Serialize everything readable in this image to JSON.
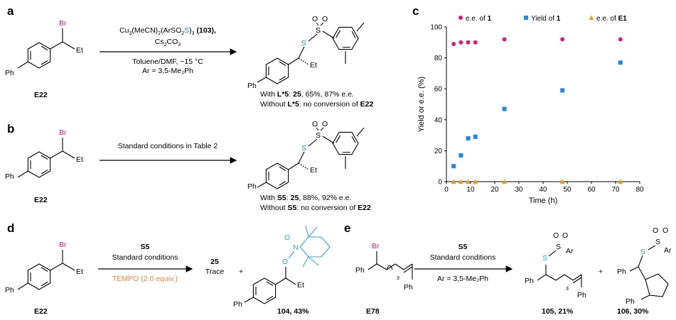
{
  "panels": {
    "a": {
      "letter": "a",
      "compound_label": "E22",
      "br": "Br",
      "et": "Et",
      "ph": "Ph",
      "conditions_line1_pre": "Cu",
      "conditions_line1_sub1": "3",
      "conditions_line1_mid": "(MeCN)",
      "conditions_line1_sub2": "2",
      "conditions_line1_mid2": "(ArSO",
      "conditions_line1_sub3": "2",
      "conditions_line1_s": "S",
      "conditions_line1_mid3": ")",
      "conditions_line1_sub4": "3",
      "conditions_line1_cat": " (103),",
      "conditions_line2": "Cs",
      "conditions_line2_sub": "2",
      "conditions_line2_rest": "CO",
      "conditions_line2_sub2": "3",
      "conditions_line3": "Toluene/DMF, −15 °C",
      "conditions_line4": "Ar = 3,5-Me₂Ph",
      "result_line1": "With L*5: 25, 65%, 87% e.e.",
      "result_line2": "Without L*5: no conversion of E22"
    },
    "b": {
      "letter": "b",
      "compound_label": "E22",
      "br": "Br",
      "et": "Et",
      "ph": "Ph",
      "conditions": "Standard conditions in Table 2",
      "result_line1": "With S5: 25, 88%, 92% e.e.",
      "result_line2": "Without S5: no conversion of E22"
    },
    "c": {
      "letter": "c"
    },
    "d": {
      "letter": "d",
      "compound_label": "E22",
      "br": "Br",
      "et": "Et",
      "ph": "Ph",
      "cond_line1": "S5",
      "cond_line2": "Standard conditions",
      "cond_line3": "TEMPO (2.0 equiv.)",
      "product1_num": "25",
      "product1_text": "Trace",
      "plus": "+",
      "product2_label": "104, 43%"
    },
    "e": {
      "letter": "e",
      "compound_label": "E78",
      "br": "Br",
      "ph": "Ph",
      "sub3": "3",
      "cond_line1": "S5",
      "cond_line2": "Standard conditions",
      "cond_line3": "Ar = 3,5-Me₂Ph",
      "plus": "+",
      "product1_label": "105, 21%",
      "product2_label": "106, 30%",
      "ar": "Ar"
    }
  },
  "colors": {
    "magenta": "#e0197d",
    "blue": "#1e88e5",
    "orange": "#f39c12",
    "tempo": "#f5833b",
    "cyan": "#2aa8e0"
  },
  "chart_data": {
    "type": "scatter",
    "xlabel": "Time (h)",
    "ylabel": "Yield or e.e. (%)",
    "xlim": [
      0,
      80
    ],
    "ylim": [
      0,
      100
    ],
    "xticks": [
      0,
      10,
      20,
      30,
      40,
      50,
      60,
      70,
      80
    ],
    "yticks": [
      0,
      20,
      40,
      60,
      80,
      100
    ],
    "legend_position": "top",
    "series": [
      {
        "name": "e.e. of 1",
        "marker": "circle",
        "color": "#e0197d",
        "x": [
          3,
          6,
          9,
          12,
          24,
          48,
          72
        ],
        "y": [
          89,
          90,
          90,
          90,
          92,
          92,
          92
        ]
      },
      {
        "name": "Yield of 1",
        "marker": "square",
        "color": "#1e88e5",
        "x": [
          3,
          6,
          9,
          12,
          24,
          48,
          72
        ],
        "y": [
          10,
          17,
          28,
          29,
          47,
          59,
          77
        ]
      },
      {
        "name": "e.e. of E1",
        "marker": "triangle",
        "color": "#f39c12",
        "x": [
          3,
          6,
          9,
          12,
          24,
          48,
          72
        ],
        "y": [
          0,
          0,
          0,
          0,
          0,
          0,
          0
        ]
      }
    ]
  }
}
